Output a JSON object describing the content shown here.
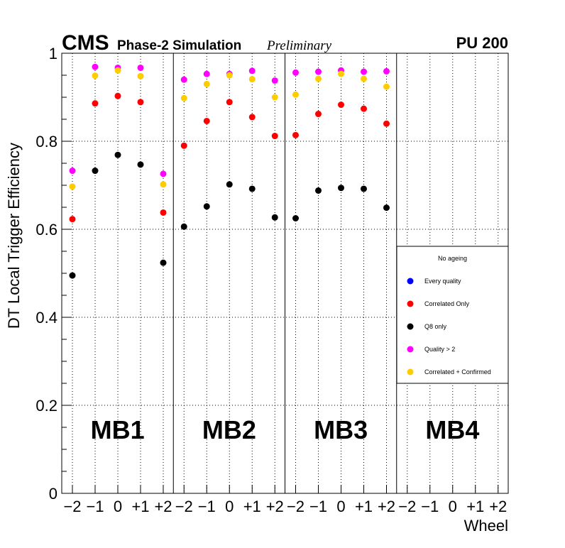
{
  "chart_data": {
    "type": "scatter",
    "header": {
      "experiment": "CMS",
      "subtitle": "Phase-2 Simulation",
      "status": "Preliminary",
      "pileup": "PU 200"
    },
    "ylabel": "DT Local Trigger Efficiency",
    "xlabel": "Wheel",
    "ylim": [
      0,
      1
    ],
    "yticks": [
      {
        "value": 0,
        "label": "0"
      },
      {
        "value": 0.2,
        "label": "0.2"
      },
      {
        "value": 0.4,
        "label": "0.4"
      },
      {
        "value": 0.6,
        "label": "0.6"
      },
      {
        "value": 0.8,
        "label": "0.8"
      },
      {
        "value": 1.0,
        "label": "1"
      }
    ],
    "wheels": [
      "−2",
      "−1",
      "0",
      "+1",
      "+2"
    ],
    "stations": [
      "MB1",
      "MB2",
      "MB3",
      "MB4"
    ],
    "grid": true,
    "legend": {
      "title": "No ageing",
      "position": "right"
    },
    "series": [
      {
        "name": "Every quality",
        "color": "#0000ff",
        "values": [
          [
            null,
            null,
            null,
            null,
            null
          ],
          [
            null,
            null,
            null,
            null,
            null
          ],
          [
            null,
            null,
            null,
            null,
            null
          ],
          [
            null,
            null,
            null,
            null,
            null
          ]
        ]
      },
      {
        "name": "Correlated Only",
        "color": "#ff0000",
        "values": [
          [
            0.623,
            0.886,
            0.903,
            0.889,
            0.638
          ],
          [
            0.79,
            0.846,
            0.889,
            0.855,
            0.812
          ],
          [
            0.814,
            0.862,
            0.883,
            0.874,
            0.84
          ],
          [
            null,
            null,
            null,
            null,
            null
          ]
        ]
      },
      {
        "name": "Q8 only",
        "color": "#000000",
        "values": [
          [
            0.495,
            0.733,
            0.769,
            0.747,
            0.524
          ],
          [
            0.606,
            0.652,
            0.702,
            0.692,
            0.627
          ],
          [
            0.625,
            0.688,
            0.694,
            0.692,
            0.649
          ],
          [
            null,
            null,
            null,
            null,
            null
          ]
        ]
      },
      {
        "name": "Quality > 2",
        "color": "#ff00ff",
        "values": [
          [
            0.733,
            0.969,
            0.967,
            0.967,
            0.726
          ],
          [
            0.94,
            0.953,
            0.953,
            0.96,
            0.938
          ],
          [
            0.956,
            0.958,
            0.961,
            0.958,
            0.959
          ],
          [
            null,
            null,
            null,
            null,
            null
          ]
        ]
      },
      {
        "name": "Correlated + Confirmed",
        "color": "#ffcc00",
        "values": [
          [
            0.697,
            0.949,
            0.961,
            0.948,
            0.702
          ],
          [
            0.898,
            0.93,
            0.95,
            0.941,
            0.9
          ],
          [
            0.906,
            0.942,
            0.953,
            0.942,
            0.924
          ],
          [
            null,
            null,
            null,
            null,
            null
          ]
        ]
      }
    ]
  }
}
